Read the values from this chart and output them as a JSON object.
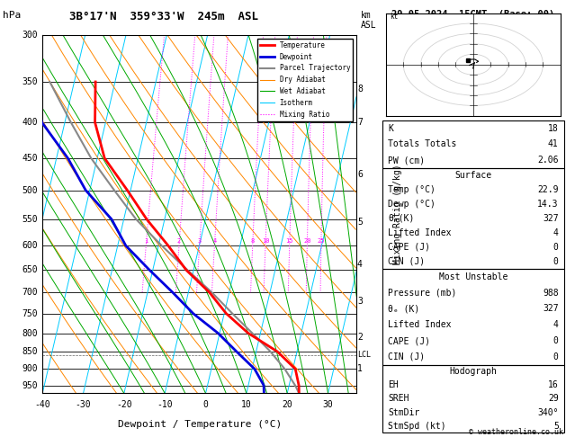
{
  "title_left": "3B°17'N  359°33'W  245m  ASL",
  "title_right": "29.05.2024  15GMT  (Base: 00)",
  "xlabel": "Dewpoint / Temperature (°C)",
  "pressure_levels": [
    300,
    350,
    400,
    450,
    500,
    550,
    600,
    650,
    700,
    750,
    800,
    850,
    900,
    950
  ],
  "P_min": 300,
  "P_max": 975,
  "T_min": -40,
  "T_max": 37,
  "SKEW": 40,
  "temp_profile_T": [
    22.9,
    22.4,
    20.6,
    15.2,
    7.0,
    0.5,
    -4.8,
    -11.8,
    -17.6,
    -24.4,
    -30.8,
    -38.2,
    -42.6,
    -44.8
  ],
  "temp_profile_P": [
    975,
    950,
    900,
    850,
    800,
    750,
    700,
    650,
    600,
    550,
    500,
    450,
    400,
    350
  ],
  "dewp_profile_T": [
    14.3,
    13.8,
    10.6,
    5.2,
    -0.4,
    -7.6,
    -13.8,
    -20.8,
    -28.0,
    -33.0,
    -41.0,
    -47.2,
    -55.6,
    -60.8
  ],
  "dewp_profile_P": [
    975,
    950,
    900,
    850,
    800,
    750,
    700,
    650,
    600,
    550,
    500,
    450,
    400,
    350
  ],
  "parcel_T": [
    22.9,
    21.5,
    18.0,
    13.5,
    8.0,
    2.0,
    -4.2,
    -11.5,
    -19.2,
    -27.0,
    -34.0,
    -41.5,
    -48.5,
    -56.0
  ],
  "parcel_P": [
    975,
    950,
    900,
    850,
    800,
    750,
    700,
    650,
    600,
    550,
    500,
    450,
    400,
    350
  ],
  "lcl_pressure": 860,
  "isotherm_color": "#00ccff",
  "dry_adiabat_color": "#ff8800",
  "wet_adiabat_color": "#00aa00",
  "temp_color": "#ff0000",
  "dewp_color": "#0000dd",
  "parcel_color": "#888888",
  "mixing_ratio_color": "#ff00ff",
  "mixing_ratios": [
    1,
    2,
    3,
    4,
    8,
    10,
    15,
    20,
    25
  ],
  "legend_items": [
    {
      "label": "Temperature",
      "color": "#ff0000",
      "lw": 2,
      "ls": "solid"
    },
    {
      "label": "Dewpoint",
      "color": "#0000dd",
      "lw": 2,
      "ls": "solid"
    },
    {
      "label": "Parcel Trajectory",
      "color": "#888888",
      "lw": 1.5,
      "ls": "solid"
    },
    {
      "label": "Dry Adiabat",
      "color": "#ff8800",
      "lw": 0.8,
      "ls": "solid"
    },
    {
      "label": "Wet Adiabat",
      "color": "#00aa00",
      "lw": 0.8,
      "ls": "solid"
    },
    {
      "label": "Isotherm",
      "color": "#00ccff",
      "lw": 0.8,
      "ls": "solid"
    },
    {
      "label": "Mixing Ratio",
      "color": "#ff00ff",
      "lw": 0.8,
      "ls": "dotted"
    }
  ],
  "km_ticks": {
    "1": 900,
    "2": 810,
    "3": 720,
    "4": 638,
    "5": 555,
    "6": 475,
    "7": 400,
    "8": 358
  },
  "info_panel": {
    "K": 18,
    "Totals_Totals": 41,
    "PW_cm": 2.06,
    "Surface_Temp": 22.9,
    "Surface_Dewp": 14.3,
    "Surface_theta_e": 327,
    "Lifted_Index": 4,
    "CAPE": 0,
    "CIN": 0,
    "MU_Pressure": 988,
    "MU_theta_e": 327,
    "MU_LI": 4,
    "MU_CAPE": 0,
    "MU_CIN": 0,
    "Hodo_EH": 16,
    "Hodo_SREH": 29,
    "StmDir": 340,
    "StmSpd": 5
  }
}
